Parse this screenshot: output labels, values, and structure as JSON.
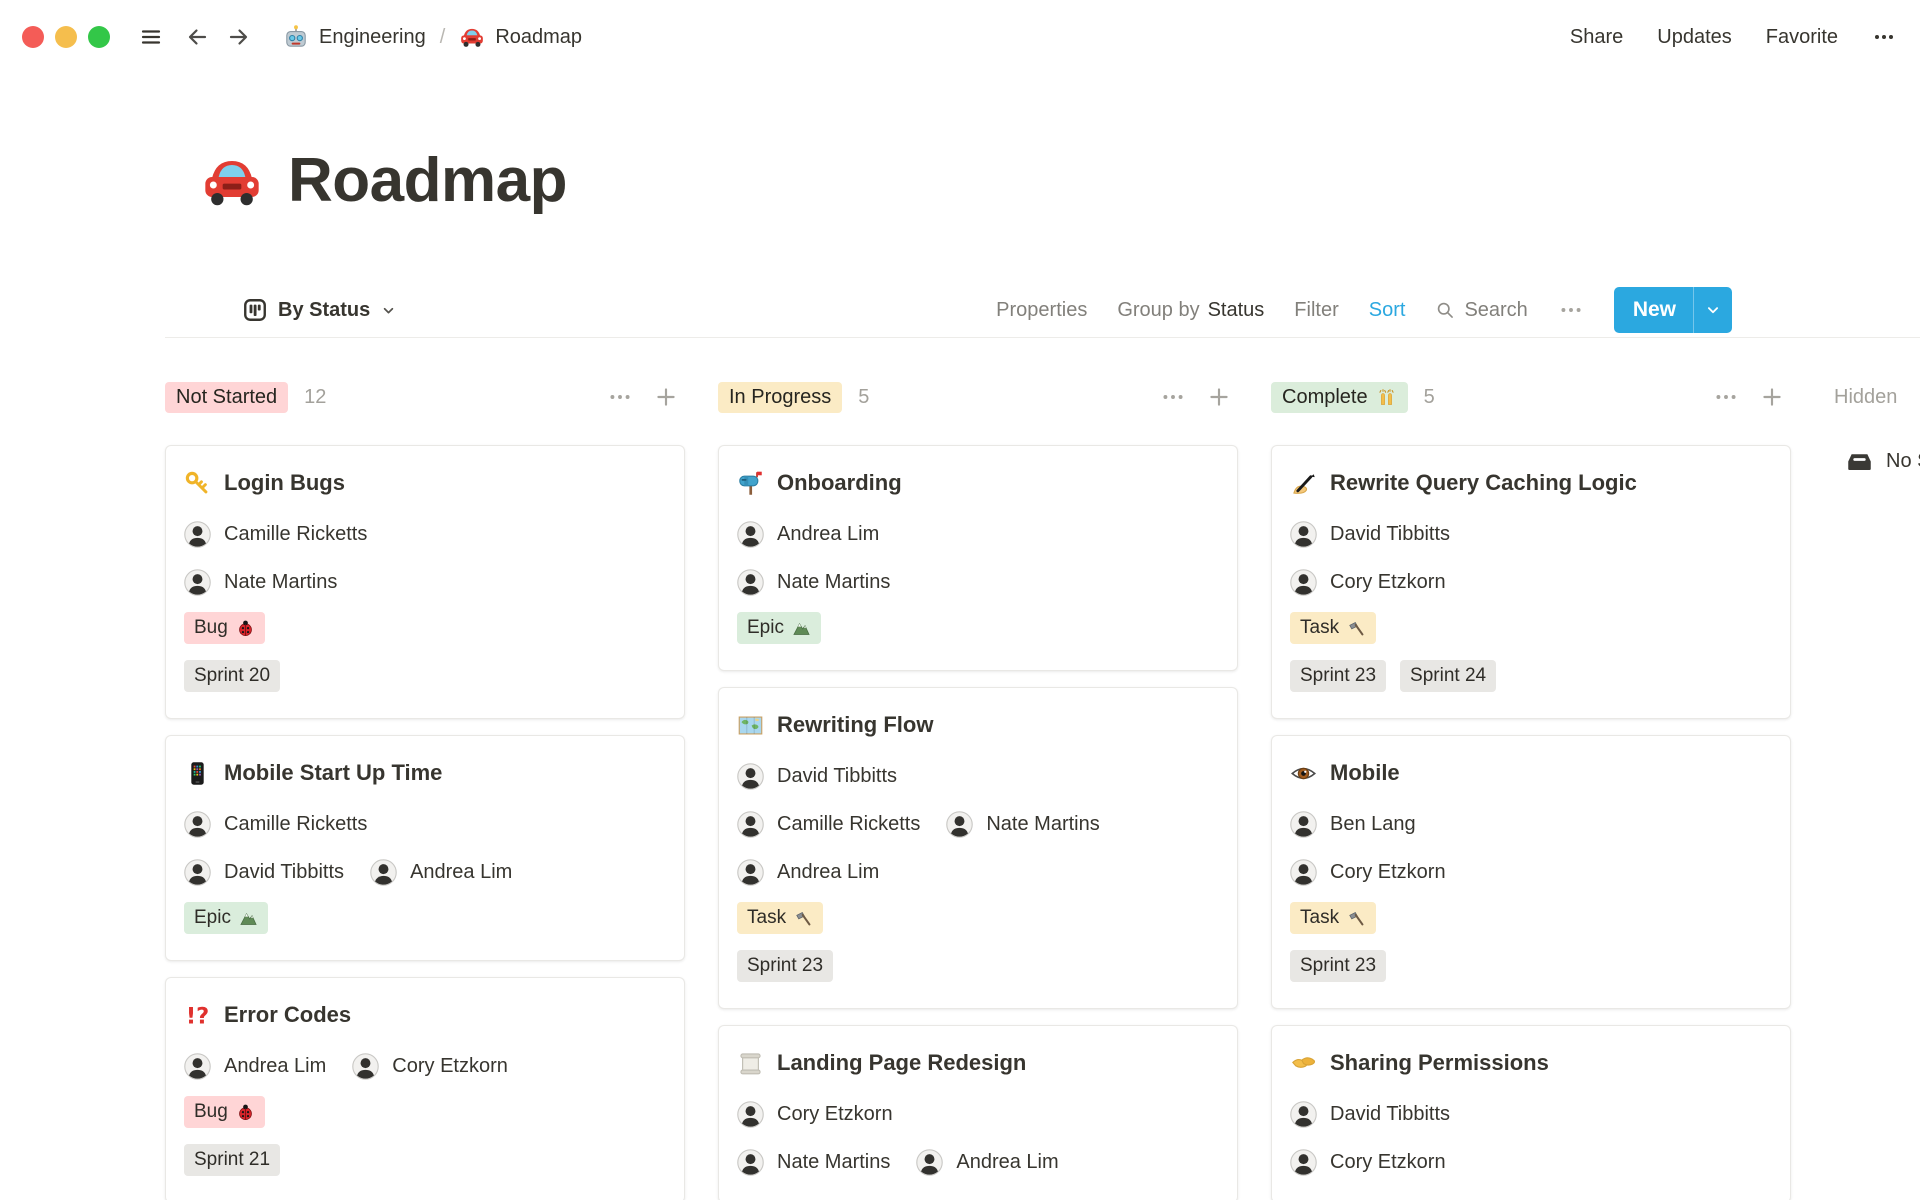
{
  "topbar": {
    "breadcrumb": [
      {
        "icon": "robot",
        "label": "Engineering"
      },
      {
        "icon": "car",
        "label": "Roadmap"
      }
    ],
    "separator": "/",
    "actions": [
      "Share",
      "Updates",
      "Favorite"
    ]
  },
  "page": {
    "icon": "car",
    "title": "Roadmap"
  },
  "toolbar": {
    "view_label": "By Status",
    "properties": "Properties",
    "group_by_prefix": "Group by",
    "group_by_value": "Status",
    "filter": "Filter",
    "sort": "Sort",
    "search": "Search",
    "new_label": "New",
    "accent_blue": "#2BA8E0"
  },
  "board": {
    "sprint_color": "#E8E7E4",
    "columns": [
      {
        "id": "not-started",
        "label": "Not Started",
        "label_icon": null,
        "label_color": "#FFD5D6",
        "count": "12",
        "cards": [
          {
            "icon": "key",
            "title": "Login Bugs",
            "people_rows": [
              [
                "Camille Ricketts"
              ],
              [
                "Nate Martins"
              ]
            ],
            "tags": [
              {
                "label": "Bug",
                "icon": "ladybug",
                "color": "#FFD5D6"
              }
            ],
            "sprints": [
              "Sprint 20"
            ]
          },
          {
            "icon": "phone",
            "title": "Mobile Start Up Time",
            "people_rows": [
              [
                "Camille Ricketts"
              ],
              [
                "David Tibbitts",
                "Andrea Lim"
              ]
            ],
            "tags": [
              {
                "label": "Epic",
                "icon": "mountain",
                "color": "#DAEDDC"
              }
            ],
            "sprints": []
          },
          {
            "icon": "interrobang",
            "title": "Error Codes",
            "people_rows": [
              [
                "Andrea Lim",
                "Cory Etzkorn"
              ]
            ],
            "tags": [
              {
                "label": "Bug",
                "icon": "ladybug",
                "color": "#FFD5D6"
              }
            ],
            "sprints": [
              "Sprint 21"
            ]
          }
        ]
      },
      {
        "id": "in-progress",
        "label": "In Progress",
        "label_icon": null,
        "label_color": "#FBEBC5",
        "count": "5",
        "cards": [
          {
            "icon": "mailbox",
            "title": "Onboarding",
            "people_rows": [
              [
                "Andrea Lim"
              ],
              [
                "Nate Martins"
              ]
            ],
            "tags": [
              {
                "label": "Epic",
                "icon": "mountain",
                "color": "#DAEDDC"
              }
            ],
            "sprints": []
          },
          {
            "icon": "map",
            "title": "Rewriting Flow",
            "people_rows": [
              [
                "David Tibbitts"
              ],
              [
                "Camille Ricketts",
                "Nate Martins"
              ],
              [
                "Andrea Lim"
              ]
            ],
            "tags": [
              {
                "label": "Task",
                "icon": "hammer",
                "color": "#FBEBC5"
              }
            ],
            "sprints": [
              "Sprint 23"
            ]
          },
          {
            "icon": "scroll",
            "title": "Landing Page Redesign",
            "people_rows": [
              [
                "Cory Etzkorn"
              ],
              [
                "Nate Martins",
                "Andrea Lim"
              ]
            ],
            "tags": [],
            "sprints": []
          }
        ]
      },
      {
        "id": "complete",
        "label": "Complete",
        "label_icon": "raised-hands",
        "label_color": "#DBEDDB",
        "count": "5",
        "cards": [
          {
            "icon": "writing-hand",
            "title": "Rewrite Query Caching Logic",
            "people_rows": [
              [
                "David Tibbitts"
              ],
              [
                "Cory Etzkorn"
              ]
            ],
            "tags": [
              {
                "label": "Task",
                "icon": "hammer",
                "color": "#FBEBC5"
              }
            ],
            "sprints": [
              "Sprint 23",
              "Sprint 24"
            ]
          },
          {
            "icon": "eye",
            "title": "Mobile",
            "people_rows": [
              [
                "Ben Lang"
              ],
              [
                "Cory Etzkorn"
              ]
            ],
            "tags": [
              {
                "label": "Task",
                "icon": "hammer",
                "color": "#FBEBC5"
              }
            ],
            "sprints": [
              "Sprint 23"
            ]
          },
          {
            "icon": "handshake",
            "title": "Sharing Permissions",
            "people_rows": [
              [
                "David Tibbitts"
              ],
              [
                "Cory Etzkorn"
              ]
            ],
            "tags": [],
            "sprints": []
          }
        ]
      }
    ],
    "hidden": {
      "label": "Hidden",
      "group": {
        "icon": "tray",
        "label": "No Status"
      }
    }
  }
}
